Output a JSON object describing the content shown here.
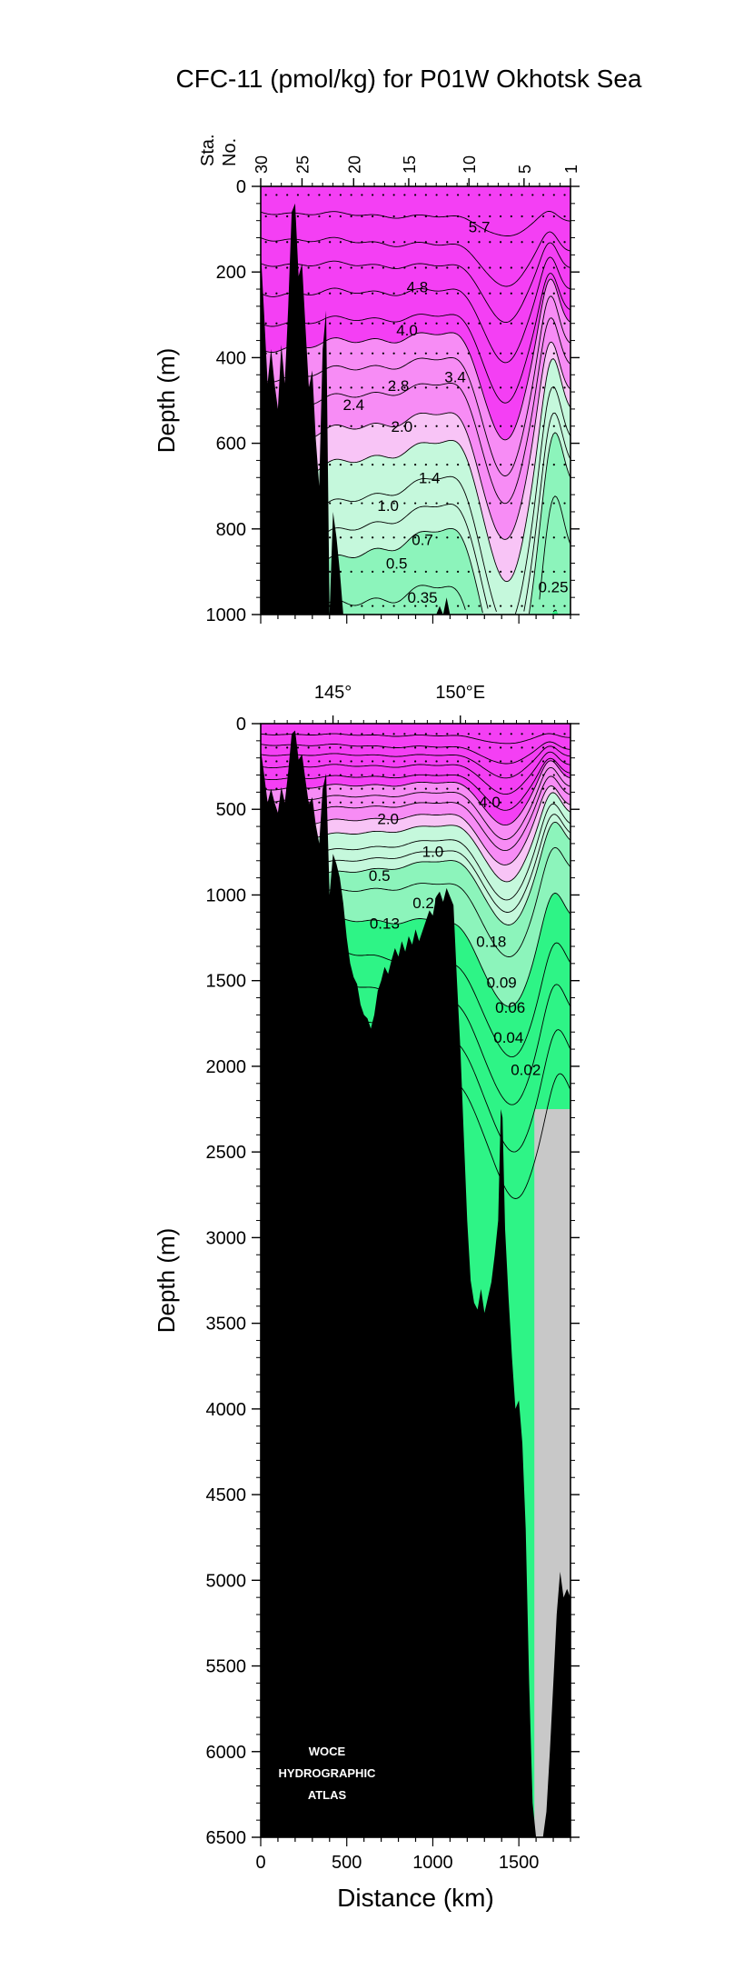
{
  "title": "CFC-11 (pmol/kg) for P01W Okhotsk Sea",
  "watermark": [
    "WOCE",
    "HYDROGRAPHIC",
    "ATLAS"
  ],
  "colors": {
    "high": "#f43ff4",
    "mid": "#f78cf5",
    "pink_light": "#f8c4f6",
    "green_light": "#c5f8dc",
    "green_mid": "#8cf4bb",
    "green_deep": "#2ef486",
    "no_data": "#c8c8c8",
    "bathymetry": "#000000"
  },
  "chart_data": [
    {
      "type": "contour-section",
      "panel": "upper",
      "station_axis_label": [
        "Sta.",
        "No."
      ],
      "station_ticks": [
        "30",
        "25",
        "20",
        "15",
        "10",
        "5",
        "1"
      ],
      "station_tick_km": [
        0,
        240,
        540,
        860,
        1210,
        1530,
        1800
      ],
      "ylabel": "Depth (m)",
      "ylim": [
        0,
        1000
      ],
      "yticks": [
        "0",
        "200",
        "400",
        "600",
        "800",
        "1000"
      ],
      "xlim": [
        0,
        1800
      ],
      "contour_labels": [
        {
          "text": "5.7",
          "km": 1270,
          "depth": 95
        },
        {
          "text": "4.8",
          "km": 910,
          "depth": 235
        },
        {
          "text": "4.0",
          "km": 850,
          "depth": 335
        },
        {
          "text": "3.4",
          "km": 1130,
          "depth": 445
        },
        {
          "text": "2.8",
          "km": 800,
          "depth": 465
        },
        {
          "text": "2.4",
          "km": 540,
          "depth": 510
        },
        {
          "text": "2.0",
          "km": 820,
          "depth": 560
        },
        {
          "text": "1.4",
          "km": 980,
          "depth": 680
        },
        {
          "text": "1.0",
          "km": 740,
          "depth": 745
        },
        {
          "text": "0.7",
          "km": 940,
          "depth": 825
        },
        {
          "text": "0.5",
          "km": 790,
          "depth": 880
        },
        {
          "text": "0.35",
          "km": 940,
          "depth": 960
        },
        {
          "text": "0.25",
          "km": 1700,
          "depth": 935
        }
      ]
    },
    {
      "type": "contour-section",
      "panel": "lower",
      "lon_ticks": [
        "145°",
        "150°E"
      ],
      "lon_tick_km": [
        420,
        1160
      ],
      "xlabel": "Distance (km)",
      "xticks": [
        "0",
        "500",
        "1000",
        "1500"
      ],
      "xlim": [
        0,
        1800
      ],
      "ylabel": "Depth (m)",
      "ylim": [
        0,
        6500
      ],
      "yticks": [
        "0",
        "500",
        "1000",
        "1500",
        "2000",
        "2500",
        "3000",
        "3500",
        "4000",
        "4500",
        "5000",
        "5500",
        "6000",
        "6500"
      ],
      "contour_labels": [
        {
          "text": "4.0",
          "km": 1330,
          "depth": 455
        },
        {
          "text": "2.0",
          "km": 740,
          "depth": 555
        },
        {
          "text": "1.0",
          "km": 1000,
          "depth": 745
        },
        {
          "text": "0.5",
          "km": 690,
          "depth": 885
        },
        {
          "text": "0.25",
          "km": 970,
          "depth": 1045
        },
        {
          "text": "0.13",
          "km": 720,
          "depth": 1165
        },
        {
          "text": "0.18",
          "km": 1340,
          "depth": 1270
        },
        {
          "text": "0.09",
          "km": 1400,
          "depth": 1510
        },
        {
          "text": "0.06",
          "km": 1450,
          "depth": 1655
        },
        {
          "text": "0.04",
          "km": 1440,
          "depth": 1830
        },
        {
          "text": "0.02",
          "km": 1540,
          "depth": 2020
        }
      ],
      "no_data_region": {
        "km_from": 1590,
        "depth_from": 2250
      }
    }
  ]
}
